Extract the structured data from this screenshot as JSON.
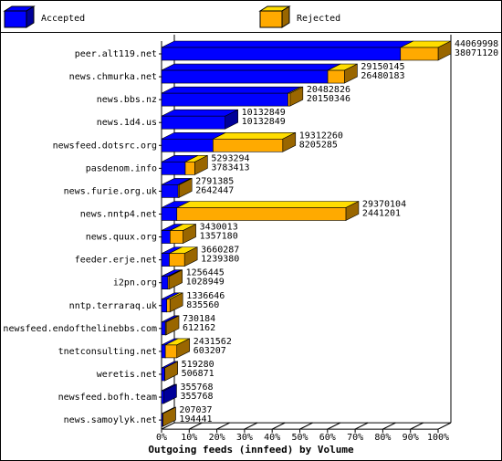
{
  "chart_data": {
    "type": "bar3d-stacked-horizontal",
    "xlabel": "Outgoing feeds (innfeed) by Volume",
    "categories": [
      "peer.alt119.net",
      "news.chmurka.net",
      "news.bbs.nz",
      "news.1d4.us",
      "newsfeed.dotsrc.org",
      "pasdenom.info",
      "news.furie.org.uk",
      "news.nntp4.net",
      "news.quux.org",
      "feeder.erje.net",
      "i2pn.org",
      "nntp.terraraq.uk",
      "newsfeed.endofthelinebbs.com",
      "tnetconsulting.net",
      "weretis.net",
      "newsfeed.bofh.team",
      "news.samoylyk.net"
    ],
    "offered": [
      44069998,
      29150145,
      20482826,
      10132849,
      19312260,
      5293294,
      2791385,
      29370104,
      3430013,
      3660287,
      1256445,
      1336646,
      730184,
      2431562,
      519280,
      355768,
      207037
    ],
    "series": [
      {
        "name": "Accepted",
        "color": "#0000ff",
        "values": [
          38071120,
          26480183,
          20150346,
          10132849,
          8205285,
          3783413,
          2642447,
          2441201,
          1357180,
          1239380,
          1028949,
          835560,
          612162,
          603207,
          506871,
          355768,
          194441
        ]
      },
      {
        "name": "Rejected",
        "color": "#ffaa00",
        "values": [
          5998878,
          2669962,
          332480,
          0,
          11106975,
          1509881,
          148938,
          26928903,
          2072833,
          2420907,
          227496,
          501086,
          118022,
          1828355,
          12409,
          0,
          12596
        ]
      }
    ],
    "xlim": [
      0,
      44069998
    ],
    "xticks": [
      {
        "value": 0,
        "label": "0%"
      },
      {
        "value": 4406999.8,
        "label": "10%"
      },
      {
        "value": 8813999.6,
        "label": "20%"
      },
      {
        "value": 13220999.4,
        "label": "30%"
      },
      {
        "value": 17627999.2,
        "label": "40%"
      },
      {
        "value": 22034999,
        "label": "50%"
      },
      {
        "value": 26441998.8,
        "label": "60%"
      },
      {
        "value": 30848998.6,
        "label": "70%"
      },
      {
        "value": 35255998.4,
        "label": "80%"
      },
      {
        "value": 39662998.2,
        "label": "90%"
      },
      {
        "value": 44069998,
        "label": "100%"
      }
    ]
  }
}
